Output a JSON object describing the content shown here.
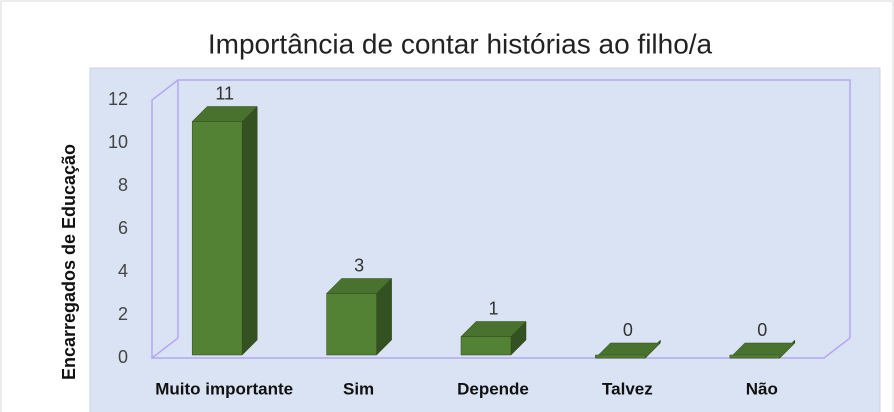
{
  "chart_data": {
    "type": "bar",
    "title": "Importância de contar histórias ao filho/a",
    "y_label": "Encarregados de Educação",
    "categories": [
      "Muito importante",
      "Sim",
      "Depende",
      "Talvez",
      "Não"
    ],
    "values": [
      11,
      3,
      1,
      0,
      0
    ],
    "color": "#548235",
    "ylim": [
      0,
      12
    ],
    "yticks": [
      0,
      2,
      4,
      6,
      8,
      10,
      12
    ],
    "grid": false
  }
}
